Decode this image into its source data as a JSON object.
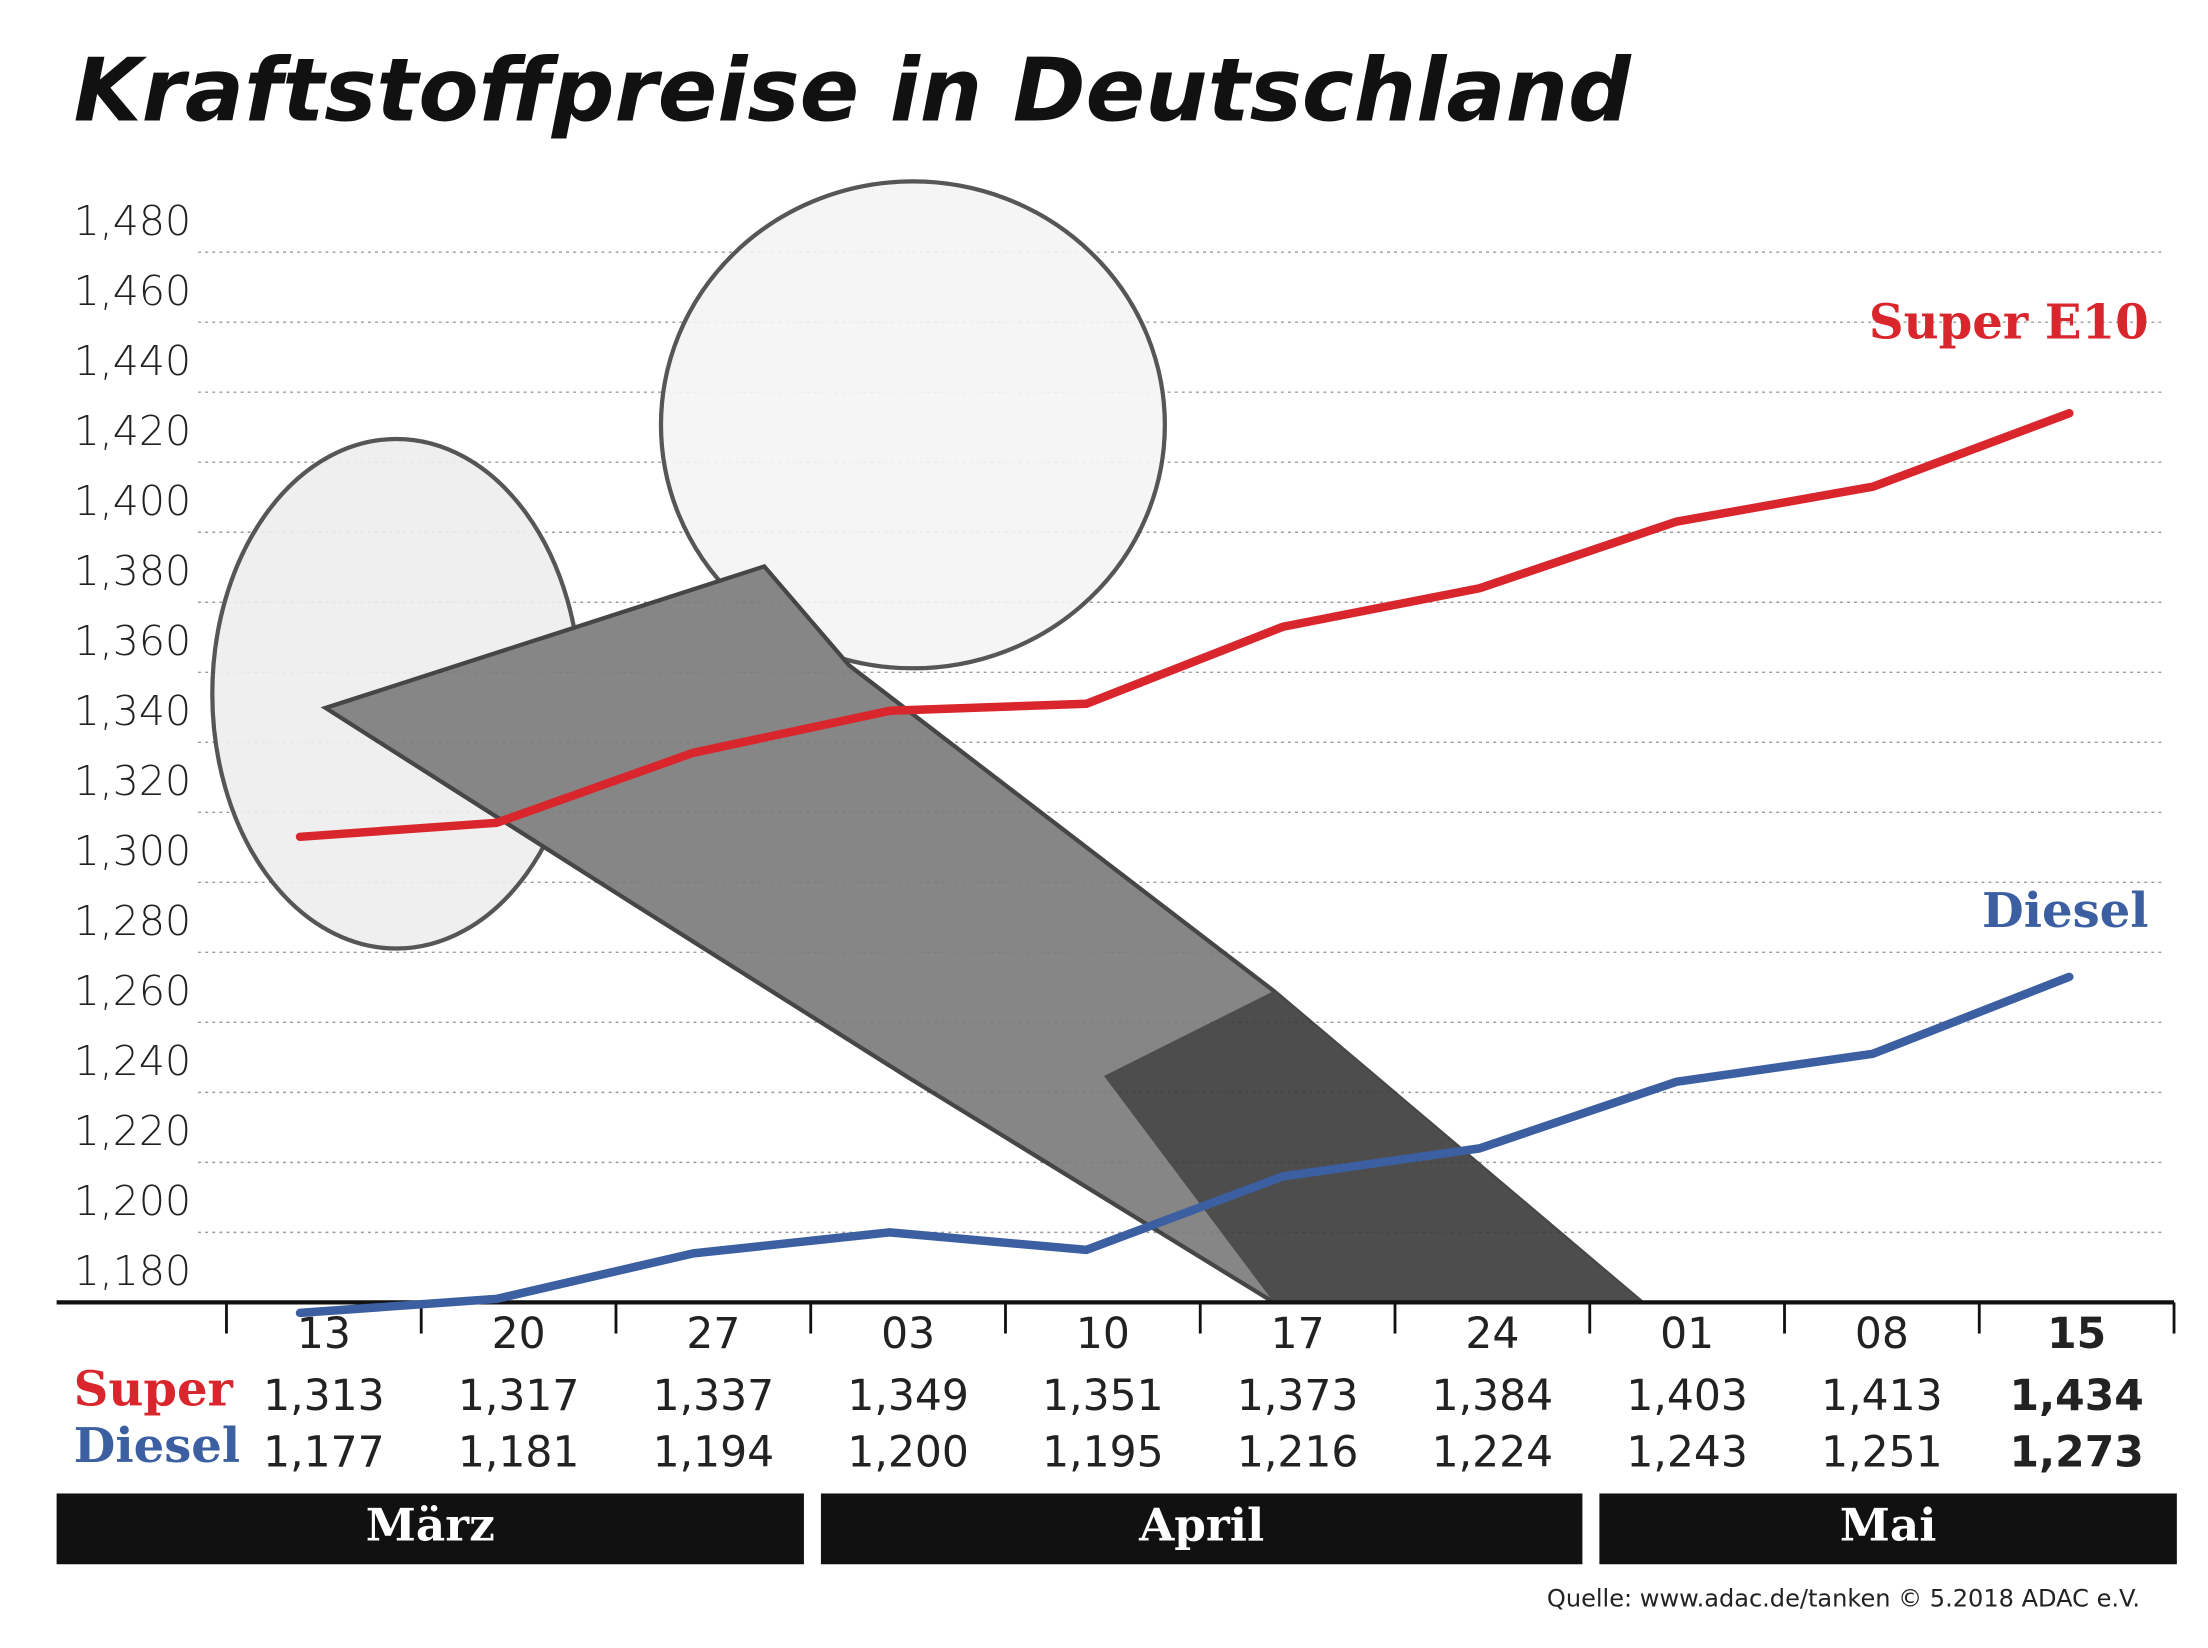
{
  "chart_data": {
    "type": "line",
    "title": "Kraftstoffpreise in Deutschland",
    "categories": [
      "13",
      "20",
      "27",
      "03",
      "10",
      "17",
      "24",
      "01",
      "08",
      "15"
    ],
    "groups": [
      "März",
      "April",
      "Mai"
    ],
    "row_labels": [
      "Super",
      "Diesel"
    ],
    "series": [
      {
        "name": "Super E10",
        "color": "#d9262c",
        "values": [
          1.313,
          1.317,
          1.337,
          1.349,
          1.351,
          1.373,
          1.384,
          1.403,
          1.413,
          1.434
        ],
        "value_labels": [
          "1,313",
          "1,317",
          "1,337",
          "1,349",
          "1,351",
          "1,373",
          "1,384",
          "1,403",
          "1,413",
          "1,434"
        ]
      },
      {
        "name": "Diesel",
        "color": "#3b5fa0",
        "values": [
          1.177,
          1.181,
          1.194,
          1.2,
          1.195,
          1.216,
          1.224,
          1.243,
          1.251,
          1.273
        ],
        "value_labels": [
          "1,177",
          "1,181",
          "1,194",
          "1,200",
          "1,195",
          "1,216",
          "1,224",
          "1,243",
          "1,251",
          "1,273"
        ]
      }
    ],
    "ylim": [
      1.18,
      1.48
    ],
    "yticks": [
      {
        "value": 1.18,
        "label": "1,180"
      },
      {
        "value": 1.2,
        "label": "1,200"
      },
      {
        "value": 1.22,
        "label": "1,220"
      },
      {
        "value": 1.24,
        "label": "1,240"
      },
      {
        "value": 1.26,
        "label": "1,260"
      },
      {
        "value": 1.28,
        "label": "1,280"
      },
      {
        "value": 1.3,
        "label": "1,300"
      },
      {
        "value": 1.32,
        "label": "1,320"
      },
      {
        "value": 1.34,
        "label": "1,340"
      },
      {
        "value": 1.36,
        "label": "1,360"
      },
      {
        "value": 1.38,
        "label": "1,380"
      },
      {
        "value": 1.4,
        "label": "1,400"
      },
      {
        "value": 1.42,
        "label": "1,420"
      },
      {
        "value": 1.44,
        "label": "1,440"
      },
      {
        "value": 1.46,
        "label": "1,460"
      },
      {
        "value": 1.48,
        "label": "1,480"
      }
    ],
    "grid": true,
    "source": "Quelle: www.adac.de/tanken   © 5.2018  ADAC e.V."
  }
}
